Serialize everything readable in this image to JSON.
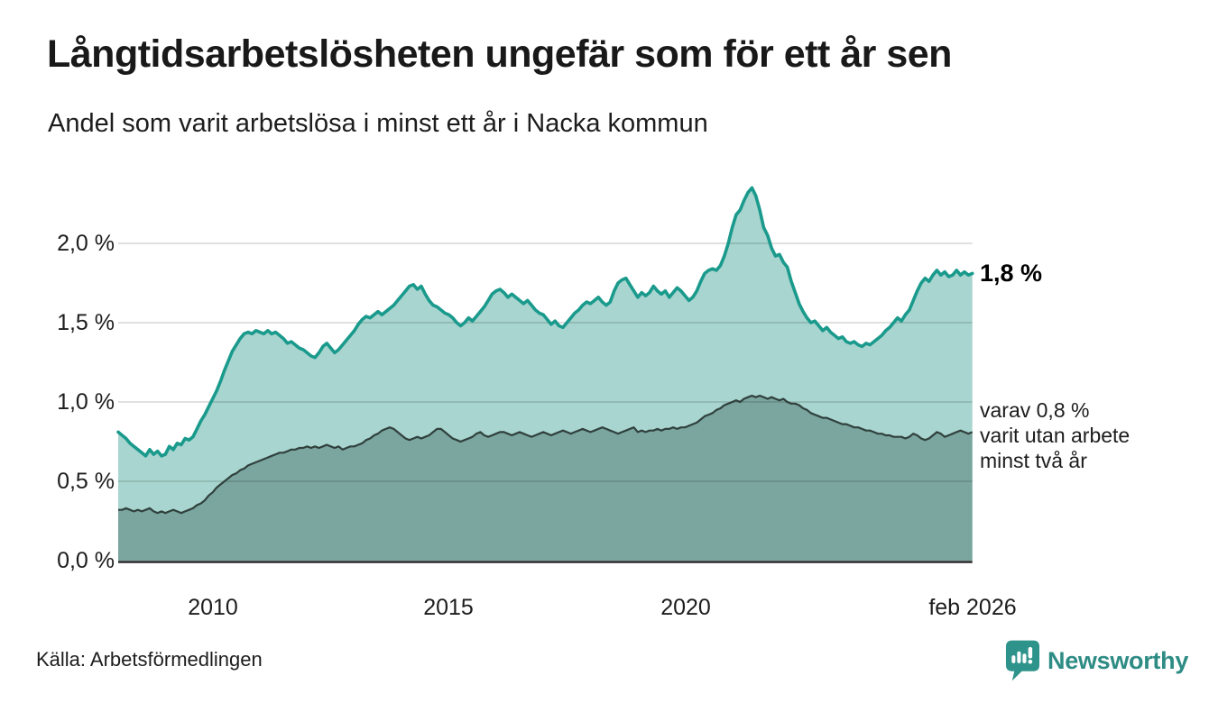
{
  "header": {
    "title": "Långtidsarbetslösheten ungefär som för ett år sen",
    "subtitle": "Andel som varit arbetslösa i minst ett år i Nacka kommun"
  },
  "chart_data": {
    "type": "area",
    "title": "Långtidsarbetslösheten ungefär som för ett år sen",
    "subtitle": "Andel som varit arbetslösa i minst ett år i Nacka kommun",
    "unit": "%",
    "x_start": "jan 2008",
    "x_end": "feb 2026",
    "x_step_months": 1,
    "x_axis": {
      "tick_labels": [
        "2010",
        "2015",
        "2020",
        "feb 2026"
      ],
      "tick_years": [
        2010,
        2015,
        2020,
        2026.083
      ]
    },
    "y_axis": {
      "tick_labels": [
        "0,0 %",
        "0,5 %",
        "1,0 %",
        "1,5 %",
        "2,0 %"
      ],
      "tick_values": [
        0.0,
        0.5,
        1.0,
        1.5,
        2.0
      ],
      "ylim": [
        0,
        2.45
      ],
      "grid": true
    },
    "grid_color": "rgba(0,0,0,0.12)",
    "axis_color": "#262626",
    "series": [
      {
        "name": "Andel arbetslösa minst ett år",
        "line_color": "#1a9a8c",
        "fill_color": "#a8d5cf",
        "latest_value": 1.8,
        "values": [
          0.81,
          0.79,
          0.77,
          0.74,
          0.72,
          0.7,
          0.68,
          0.66,
          0.7,
          0.67,
          0.69,
          0.66,
          0.67,
          0.72,
          0.7,
          0.74,
          0.73,
          0.77,
          0.76,
          0.78,
          0.83,
          0.88,
          0.92,
          0.97,
          1.02,
          1.07,
          1.13,
          1.2,
          1.26,
          1.32,
          1.36,
          1.4,
          1.43,
          1.44,
          1.43,
          1.45,
          1.44,
          1.43,
          1.45,
          1.43,
          1.44,
          1.42,
          1.4,
          1.37,
          1.38,
          1.36,
          1.34,
          1.33,
          1.31,
          1.29,
          1.28,
          1.31,
          1.35,
          1.37,
          1.34,
          1.31,
          1.33,
          1.36,
          1.39,
          1.42,
          1.45,
          1.49,
          1.52,
          1.54,
          1.53,
          1.55,
          1.57,
          1.55,
          1.57,
          1.59,
          1.61,
          1.64,
          1.67,
          1.7,
          1.73,
          1.74,
          1.71,
          1.73,
          1.68,
          1.64,
          1.61,
          1.6,
          1.58,
          1.56,
          1.55,
          1.53,
          1.5,
          1.48,
          1.5,
          1.53,
          1.51,
          1.54,
          1.57,
          1.6,
          1.64,
          1.68,
          1.7,
          1.71,
          1.69,
          1.66,
          1.68,
          1.66,
          1.64,
          1.62,
          1.64,
          1.61,
          1.58,
          1.56,
          1.55,
          1.52,
          1.49,
          1.51,
          1.48,
          1.47,
          1.5,
          1.53,
          1.56,
          1.58,
          1.61,
          1.63,
          1.62,
          1.64,
          1.66,
          1.63,
          1.61,
          1.63,
          1.7,
          1.75,
          1.77,
          1.78,
          1.74,
          1.7,
          1.66,
          1.69,
          1.67,
          1.69,
          1.73,
          1.7,
          1.68,
          1.7,
          1.66,
          1.69,
          1.72,
          1.7,
          1.67,
          1.64,
          1.66,
          1.7,
          1.76,
          1.81,
          1.83,
          1.84,
          1.83,
          1.86,
          1.92,
          2.0,
          2.1,
          2.18,
          2.21,
          2.27,
          2.32,
          2.35,
          2.3,
          2.21,
          2.1,
          2.05,
          1.97,
          1.92,
          1.93,
          1.88,
          1.85,
          1.76,
          1.69,
          1.62,
          1.57,
          1.53,
          1.5,
          1.51,
          1.48,
          1.45,
          1.47,
          1.44,
          1.42,
          1.4,
          1.41,
          1.38,
          1.37,
          1.38,
          1.36,
          1.35,
          1.37,
          1.36,
          1.38,
          1.4,
          1.42,
          1.45,
          1.47,
          1.5,
          1.53,
          1.51,
          1.55,
          1.58,
          1.64,
          1.7,
          1.75,
          1.78,
          1.76,
          1.8,
          1.83,
          1.8,
          1.82,
          1.79,
          1.8,
          1.83,
          1.8,
          1.82,
          1.8,
          1.81
        ]
      },
      {
        "name": "varav utan arbete minst två år",
        "line_color": "#30403d",
        "fill_color": "#7aa69f",
        "latest_value": 0.8,
        "values": [
          0.32,
          0.32,
          0.33,
          0.32,
          0.31,
          0.32,
          0.31,
          0.32,
          0.33,
          0.31,
          0.3,
          0.31,
          0.3,
          0.31,
          0.32,
          0.31,
          0.3,
          0.31,
          0.32,
          0.33,
          0.35,
          0.36,
          0.38,
          0.41,
          0.43,
          0.46,
          0.48,
          0.5,
          0.52,
          0.54,
          0.55,
          0.57,
          0.58,
          0.6,
          0.61,
          0.62,
          0.63,
          0.64,
          0.65,
          0.66,
          0.67,
          0.68,
          0.68,
          0.69,
          0.7,
          0.7,
          0.71,
          0.71,
          0.72,
          0.71,
          0.72,
          0.71,
          0.72,
          0.73,
          0.72,
          0.71,
          0.72,
          0.7,
          0.71,
          0.72,
          0.72,
          0.73,
          0.74,
          0.76,
          0.77,
          0.79,
          0.8,
          0.82,
          0.83,
          0.84,
          0.83,
          0.81,
          0.79,
          0.77,
          0.76,
          0.77,
          0.78,
          0.77,
          0.78,
          0.79,
          0.81,
          0.83,
          0.83,
          0.81,
          0.79,
          0.77,
          0.76,
          0.75,
          0.76,
          0.77,
          0.78,
          0.8,
          0.81,
          0.79,
          0.78,
          0.79,
          0.8,
          0.81,
          0.81,
          0.8,
          0.79,
          0.8,
          0.81,
          0.8,
          0.79,
          0.78,
          0.79,
          0.8,
          0.81,
          0.8,
          0.79,
          0.8,
          0.81,
          0.82,
          0.81,
          0.8,
          0.81,
          0.82,
          0.83,
          0.82,
          0.81,
          0.82,
          0.83,
          0.84,
          0.83,
          0.82,
          0.81,
          0.8,
          0.81,
          0.82,
          0.83,
          0.84,
          0.81,
          0.82,
          0.81,
          0.82,
          0.82,
          0.83,
          0.82,
          0.83,
          0.83,
          0.84,
          0.83,
          0.84,
          0.84,
          0.85,
          0.86,
          0.87,
          0.89,
          0.91,
          0.92,
          0.93,
          0.95,
          0.96,
          0.98,
          0.99,
          1.0,
          1.01,
          1.0,
          1.02,
          1.03,
          1.04,
          1.03,
          1.04,
          1.03,
          1.02,
          1.03,
          1.02,
          1.01,
          1.02,
          1.0,
          0.99,
          0.99,
          0.98,
          0.96,
          0.95,
          0.93,
          0.92,
          0.91,
          0.9,
          0.9,
          0.89,
          0.88,
          0.87,
          0.86,
          0.86,
          0.85,
          0.84,
          0.84,
          0.83,
          0.82,
          0.82,
          0.81,
          0.8,
          0.8,
          0.79,
          0.79,
          0.78,
          0.78,
          0.78,
          0.77,
          0.78,
          0.8,
          0.79,
          0.77,
          0.76,
          0.77,
          0.79,
          0.81,
          0.8,
          0.78,
          0.79,
          0.8,
          0.81,
          0.82,
          0.81,
          0.8,
          0.81
        ]
      }
    ],
    "annotations": {
      "primary": "1,8 %",
      "secondary_lines": [
        "varav 0,8 %",
        "varit utan arbete",
        "minst två år"
      ]
    },
    "legend_position": "none"
  },
  "footer": {
    "source": "Källa: Arbetsförmedlingen",
    "brand": "Newsworthy"
  },
  "colors": {
    "accent_teal": "#1a9a8c",
    "light_fill": "#a8d5cf",
    "dark_fill": "#7aa69f",
    "dark_line": "#30403d",
    "brand_teal": "#2e8c85",
    "text": "#191919"
  }
}
